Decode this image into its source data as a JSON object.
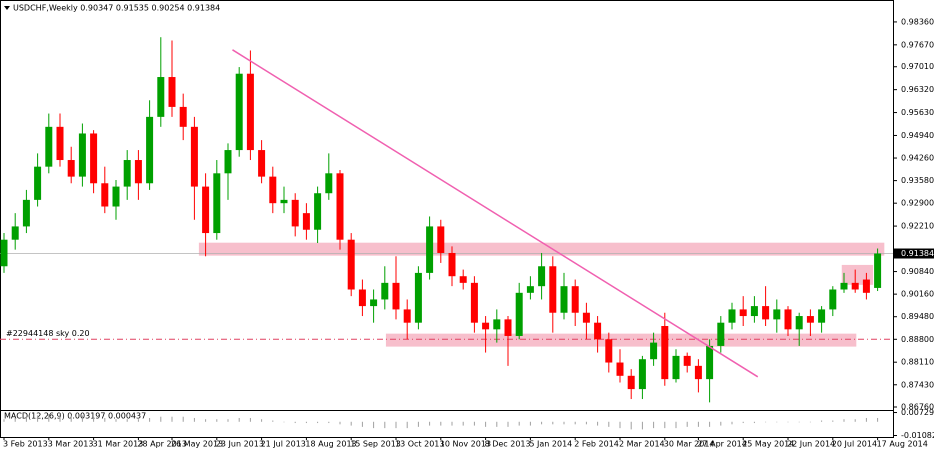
{
  "chart_data": {
    "type": "candlestick",
    "title": "USDCHF,Weekly  0.90347 0.91535 0.90254 0.91384",
    "categories": [
      "3 Feb 2013",
      null,
      null,
      null,
      "3 Mar 2013",
      null,
      null,
      null,
      "31 Mar 2013",
      null,
      null,
      null,
      "28 Apr 2013",
      null,
      null,
      "26 May 2013",
      null,
      null,
      null,
      "23 Jun 2013",
      null,
      null,
      null,
      "21 Jul 2013",
      null,
      null,
      null,
      "18 Aug 2013",
      null,
      null,
      null,
      "15 Sep 2013",
      null,
      null,
      null,
      "13 Oct 2013",
      null,
      null,
      null,
      "10 Nov 2013",
      null,
      null,
      null,
      "8 Dec 2013",
      null,
      null,
      null,
      "5 Jan 2014",
      null,
      null,
      null,
      "2 Feb 2014",
      null,
      null,
      null,
      "2 Mar 2014",
      null,
      null,
      null,
      "30 Mar 2014",
      null,
      null,
      "27 Apr 2014",
      null,
      null,
      null,
      "25 May 2014",
      null,
      null,
      null,
      "22 Jun 2014",
      null,
      null,
      null,
      "20 Jul 2014",
      null,
      null,
      null,
      "17 Aug 2014"
    ],
    "candles": [
      [
        0.91,
        0.92,
        0.908,
        0.918
      ],
      [
        0.918,
        0.926,
        0.915,
        0.922
      ],
      [
        0.922,
        0.933,
        0.92,
        0.93
      ],
      [
        0.93,
        0.944,
        0.928,
        0.94
      ],
      [
        0.94,
        0.956,
        0.938,
        0.952
      ],
      [
        0.952,
        0.956,
        0.94,
        0.942
      ],
      [
        0.942,
        0.946,
        0.935,
        0.937
      ],
      [
        0.937,
        0.953,
        0.934,
        0.95
      ],
      [
        0.95,
        0.951,
        0.932,
        0.935
      ],
      [
        0.935,
        0.94,
        0.926,
        0.928
      ],
      [
        0.928,
        0.936,
        0.924,
        0.934
      ],
      [
        0.934,
        0.945,
        0.93,
        0.942
      ],
      [
        0.942,
        0.945,
        0.93,
        0.935
      ],
      [
        0.935,
        0.96,
        0.933,
        0.955
      ],
      [
        0.955,
        0.979,
        0.952,
        0.967
      ],
      [
        0.967,
        0.978,
        0.955,
        0.958
      ],
      [
        0.958,
        0.962,
        0.948,
        0.952
      ],
      [
        0.952,
        0.955,
        0.924,
        0.934
      ],
      [
        0.934,
        0.938,
        0.913,
        0.92
      ],
      [
        0.92,
        0.942,
        0.918,
        0.938
      ],
      [
        0.938,
        0.947,
        0.93,
        0.945
      ],
      [
        0.945,
        0.97,
        0.943,
        0.968
      ],
      [
        0.968,
        0.975,
        0.942,
        0.945
      ],
      [
        0.945,
        0.948,
        0.935,
        0.937
      ],
      [
        0.937,
        0.94,
        0.926,
        0.929
      ],
      [
        0.929,
        0.934,
        0.926,
        0.93
      ],
      [
        0.93,
        0.932,
        0.919,
        0.922
      ],
      [
        0.926,
        0.929,
        0.918,
        0.921
      ],
      [
        0.921,
        0.934,
        0.917,
        0.932
      ],
      [
        0.932,
        0.944,
        0.93,
        0.938
      ],
      [
        0.938,
        0.939,
        0.915,
        0.918
      ],
      [
        0.918,
        0.92,
        0.901,
        0.903
      ],
      [
        0.903,
        0.906,
        0.895,
        0.898
      ],
      [
        0.898,
        0.903,
        0.893,
        0.9
      ],
      [
        0.9,
        0.91,
        0.897,
        0.905
      ],
      [
        0.905,
        0.913,
        0.894,
        0.897
      ],
      [
        0.897,
        0.9,
        0.888,
        0.893
      ],
      [
        0.893,
        0.91,
        0.891,
        0.908
      ],
      [
        0.908,
        0.925,
        0.906,
        0.922
      ],
      [
        0.922,
        0.924,
        0.911,
        0.914
      ],
      [
        0.914,
        0.916,
        0.904,
        0.907
      ],
      [
        0.907,
        0.909,
        0.903,
        0.905
      ],
      [
        0.905,
        0.907,
        0.89,
        0.893
      ],
      [
        0.893,
        0.895,
        0.884,
        0.891
      ],
      [
        0.891,
        0.897,
        0.887,
        0.894
      ],
      [
        0.894,
        0.895,
        0.88,
        0.889
      ],
      [
        0.889,
        0.905,
        0.888,
        0.902
      ],
      [
        0.902,
        0.907,
        0.9,
        0.904
      ],
      [
        0.904,
        0.914,
        0.9,
        0.91
      ],
      [
        0.91,
        0.913,
        0.89,
        0.896
      ],
      [
        0.896,
        0.908,
        0.894,
        0.904
      ],
      [
        0.904,
        0.906,
        0.892,
        0.896
      ],
      [
        0.896,
        0.899,
        0.888,
        0.893
      ],
      [
        0.893,
        0.895,
        0.884,
        0.888
      ],
      [
        0.888,
        0.89,
        0.878,
        0.881
      ],
      [
        0.881,
        0.885,
        0.875,
        0.877
      ],
      [
        0.877,
        0.879,
        0.87,
        0.873
      ],
      [
        0.873,
        0.883,
        0.87,
        0.882
      ],
      [
        0.882,
        0.89,
        0.88,
        0.887
      ],
      [
        0.892,
        0.896,
        0.874,
        0.876
      ],
      [
        0.876,
        0.885,
        0.875,
        0.883
      ],
      [
        0.883,
        0.884,
        0.878,
        0.88
      ],
      [
        0.88,
        0.882,
        0.872,
        0.876
      ],
      [
        0.876,
        0.888,
        0.869,
        0.886
      ],
      [
        0.886,
        0.895,
        0.884,
        0.893
      ],
      [
        0.893,
        0.899,
        0.891,
        0.897
      ],
      [
        0.897,
        0.901,
        0.892,
        0.895
      ],
      [
        0.895,
        0.901,
        0.893,
        0.898
      ],
      [
        0.898,
        0.904,
        0.892,
        0.894
      ],
      [
        0.894,
        0.9,
        0.89,
        0.897
      ],
      [
        0.897,
        0.898,
        0.889,
        0.891
      ],
      [
        0.891,
        0.896,
        0.886,
        0.895
      ],
      [
        0.895,
        0.897,
        0.889,
        0.893
      ],
      [
        0.893,
        0.898,
        0.89,
        0.897
      ],
      [
        0.897,
        0.904,
        0.895,
        0.903
      ],
      [
        0.903,
        0.908,
        0.902,
        0.905
      ],
      [
        0.905,
        0.909,
        0.902,
        0.903
      ],
      [
        0.906,
        0.908,
        0.9,
        0.902
      ],
      [
        0.90347,
        0.91535,
        0.90254,
        0.91384
      ]
    ],
    "up_color": "#00a000",
    "down_color": "#ff0000",
    "ylim": [
      0.8667,
      0.9887
    ],
    "yticks": [
      {
        "value": 0.9836,
        "label": "0.98360"
      },
      {
        "value": 0.9767,
        "label": "0.97670"
      },
      {
        "value": 0.9701,
        "label": "0.97010"
      },
      {
        "value": 0.9632,
        "label": "0.96320"
      },
      {
        "value": 0.9563,
        "label": "0.95630"
      },
      {
        "value": 0.9494,
        "label": "0.94940"
      },
      {
        "value": 0.9426,
        "label": "0.94260"
      },
      {
        "value": 0.9358,
        "label": "0.93580"
      },
      {
        "value": 0.929,
        "label": "0.92900"
      },
      {
        "value": 0.9221,
        "label": "0.92210"
      },
      {
        "value": 0.9084,
        "label": "0.90840"
      },
      {
        "value": 0.9016,
        "label": "0.90160"
      },
      {
        "value": 0.8948,
        "label": "0.89480"
      },
      {
        "value": 0.888,
        "label": "0.88800"
      },
      {
        "value": 0.8811,
        "label": "0.88110"
      },
      {
        "value": 0.8743,
        "label": "0.87430"
      },
      {
        "value": 0.8676,
        "label": "0.86760"
      }
    ],
    "last_price": 0.91384,
    "zones": [
      {
        "from": 17.4,
        "to": 78.6,
        "low": 0.9132,
        "high": 0.9171
      },
      {
        "from": 34.1,
        "to": 76.1,
        "low": 0.8858,
        "high": 0.8897
      },
      {
        "from": 74.8,
        "to": 77.6,
        "low": 0.9044,
        "high": 0.9104
      }
    ],
    "zone_color": "#f6b8c6",
    "trend_line": {
      "from": [
        20.4,
        0.9752
      ],
      "to": [
        67.3,
        0.8767
      ],
      "color": "#f060b0"
    },
    "level": {
      "value": 0.888,
      "label": "#22944148 sky 0.20",
      "color": "#e04060"
    },
    "macd": {
      "label": "MACD(12,26,9) 0.003197 0.000437",
      "ylim": [
        -0.012,
        0.0085
      ],
      "yticks": [
        0.00729,
        -0.01082
      ],
      "color": "#a0a0a0",
      "values": [
        0.002,
        0.003,
        0.004,
        0.005,
        0.006,
        0.006,
        0.005,
        0.005,
        0.004,
        0.003,
        0.002,
        0.002,
        0.002,
        0.003,
        0.004,
        0.004,
        0.004,
        0.003,
        0.002,
        0.002,
        0.002,
        0.003,
        0.003,
        0.002,
        0.001,
        0,
        -0.001,
        -0.001,
        -0.001,
        -0.001,
        -0.002,
        -0.003,
        -0.004,
        -0.005,
        -0.005,
        -0.005,
        -0.005,
        -0.004,
        -0.003,
        -0.003,
        -0.003,
        -0.003,
        -0.003,
        -0.004,
        -0.004,
        -0.004,
        -0.003,
        -0.003,
        -0.002,
        -0.002,
        -0.002,
        -0.002,
        -0.002,
        -0.003,
        -0.004,
        -0.005,
        -0.006,
        -0.006,
        -0.005,
        -0.005,
        -0.005,
        -0.004,
        -0.004,
        -0.004,
        -0.003,
        -0.002,
        -0.001,
        -0.001,
        0,
        0,
        0,
        0,
        0,
        0.001,
        0.001,
        0.002,
        0.002,
        0.003,
        0.003
      ]
    }
  }
}
